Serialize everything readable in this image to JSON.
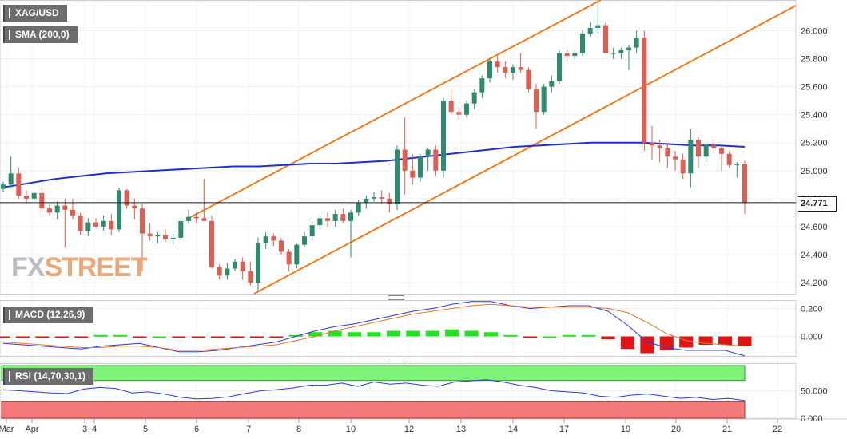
{
  "labels": {
    "symbol": "XAG/USD",
    "sma": "SMA (200,0)",
    "macd": "MACD (12,26,9)",
    "rsi": "RSI (14,70,30,1)",
    "last_price": "24.771",
    "watermark_fx": "FX",
    "watermark_street": "STREET"
  },
  "chart_data": [
    {
      "type": "candlestick",
      "title": "XAG/USD",
      "x_tick_labels": [
        "Mar",
        "Apr",
        "3",
        "4",
        "5",
        "6",
        "7",
        "8",
        "10",
        "12",
        "13",
        "14",
        "17",
        "19",
        "20",
        "21",
        "22"
      ],
      "y_tick_labels": [
        "26.000",
        "25.800",
        "25.600",
        "25.400",
        "25.200",
        "25.000",
        "24.800",
        "24.600",
        "24.400",
        "24.200"
      ],
      "ylim": [
        24.12,
        26.22
      ],
      "last_price": 24.771,
      "candles": [
        [
          24.87,
          24.92,
          24.85,
          24.9
        ],
        [
          24.9,
          25.1,
          24.88,
          24.98
        ],
        [
          24.98,
          25.02,
          24.8,
          24.82
        ],
        [
          24.82,
          24.86,
          24.76,
          24.8
        ],
        [
          24.8,
          24.85,
          24.77,
          24.84
        ],
        [
          24.84,
          24.88,
          24.7,
          24.73
        ],
        [
          24.73,
          24.76,
          24.68,
          24.7
        ],
        [
          24.7,
          24.78,
          24.65,
          24.75
        ],
        [
          24.75,
          24.8,
          24.45,
          24.72
        ],
        [
          24.72,
          24.8,
          24.65,
          24.68
        ],
        [
          24.68,
          24.7,
          24.54,
          24.57
        ],
        [
          24.57,
          24.66,
          24.53,
          24.63
        ],
        [
          24.63,
          24.66,
          24.59,
          24.6
        ],
        [
          24.6,
          24.68,
          24.57,
          24.64
        ],
        [
          24.64,
          24.69,
          24.54,
          24.58
        ],
        [
          24.58,
          24.88,
          24.56,
          24.86
        ],
        [
          24.86,
          24.87,
          24.73,
          24.75
        ],
        [
          24.75,
          24.8,
          24.65,
          24.73
        ],
        [
          24.73,
          24.76,
          24.28,
          24.55
        ],
        [
          24.55,
          24.62,
          24.5,
          24.53
        ],
        [
          24.53,
          24.56,
          24.48,
          24.54
        ],
        [
          24.54,
          24.58,
          24.49,
          24.51
        ],
        [
          24.51,
          24.55,
          24.47,
          24.52
        ],
        [
          24.52,
          24.66,
          24.5,
          24.64
        ],
        [
          24.64,
          24.72,
          24.62,
          24.67
        ],
        [
          24.67,
          24.7,
          24.62,
          24.66
        ],
        [
          24.66,
          24.94,
          24.64,
          24.64
        ],
        [
          24.64,
          24.68,
          24.3,
          24.31
        ],
        [
          24.31,
          24.33,
          24.22,
          24.25
        ],
        [
          24.25,
          24.34,
          24.22,
          24.3
        ],
        [
          24.3,
          24.37,
          24.28,
          24.35
        ],
        [
          24.35,
          24.38,
          24.22,
          24.28
        ],
        [
          24.28,
          24.35,
          24.18,
          24.2
        ],
        [
          24.2,
          24.52,
          24.13,
          24.48
        ],
        [
          24.48,
          24.56,
          24.44,
          24.53
        ],
        [
          24.53,
          24.55,
          24.46,
          24.5
        ],
        [
          24.5,
          24.52,
          24.4,
          24.42
        ],
        [
          24.42,
          24.44,
          24.28,
          24.33
        ],
        [
          24.33,
          24.48,
          24.3,
          24.47
        ],
        [
          24.47,
          24.56,
          24.45,
          24.53
        ],
        [
          24.53,
          24.64,
          24.5,
          24.61
        ],
        [
          24.61,
          24.68,
          24.58,
          24.66
        ],
        [
          24.66,
          24.7,
          24.6,
          24.64
        ],
        [
          24.64,
          24.72,
          24.6,
          24.69
        ],
        [
          24.69,
          24.73,
          24.62,
          24.64
        ],
        [
          24.64,
          24.72,
          24.38,
          24.7
        ],
        [
          24.7,
          24.79,
          24.68,
          24.77
        ],
        [
          24.77,
          24.82,
          24.73,
          24.8
        ],
        [
          24.8,
          24.85,
          24.78,
          24.81
        ],
        [
          24.81,
          24.86,
          24.76,
          24.8
        ],
        [
          24.8,
          24.84,
          24.7,
          24.76
        ],
        [
          24.76,
          25.18,
          24.72,
          25.15
        ],
        [
          25.15,
          25.38,
          24.83,
          25.0
        ],
        [
          25.0,
          25.12,
          24.9,
          24.95
        ],
        [
          24.95,
          25.12,
          24.92,
          25.1
        ],
        [
          25.1,
          25.16,
          25.0,
          25.15
        ],
        [
          25.15,
          25.18,
          24.96,
          25.0
        ],
        [
          25.0,
          25.52,
          24.95,
          25.5
        ],
        [
          25.5,
          25.58,
          25.4,
          25.42
        ],
        [
          25.42,
          25.46,
          25.36,
          25.4
        ],
        [
          25.4,
          25.5,
          25.38,
          25.48
        ],
        [
          25.48,
          25.58,
          25.44,
          25.56
        ],
        [
          25.56,
          25.68,
          25.52,
          25.66
        ],
        [
          25.66,
          25.8,
          25.63,
          25.78
        ],
        [
          25.78,
          25.82,
          25.7,
          25.74
        ],
        [
          25.74,
          25.78,
          25.66,
          25.7
        ],
        [
          25.7,
          25.76,
          25.65,
          25.74
        ],
        [
          25.74,
          25.84,
          25.7,
          25.72
        ],
        [
          25.72,
          25.74,
          25.56,
          25.58
        ],
        [
          25.58,
          25.62,
          25.3,
          25.42
        ],
        [
          25.42,
          25.62,
          25.4,
          25.6
        ],
        [
          25.6,
          25.68,
          25.56,
          25.64
        ],
        [
          25.64,
          25.86,
          25.62,
          25.84
        ],
        [
          25.84,
          25.86,
          25.78,
          25.82
        ],
        [
          25.82,
          25.86,
          25.8,
          25.84
        ],
        [
          25.84,
          26.0,
          25.82,
          25.98
        ],
        [
          25.98,
          26.06,
          25.96,
          26.02
        ],
        [
          26.02,
          26.2,
          25.98,
          26.04
        ],
        [
          26.04,
          26.06,
          25.84,
          25.84
        ],
        [
          25.84,
          25.88,
          25.8,
          25.84
        ],
        [
          25.84,
          25.88,
          25.8,
          25.86
        ],
        [
          25.86,
          25.9,
          25.72,
          25.88
        ],
        [
          25.88,
          26.0,
          25.84,
          25.95
        ],
        [
          25.95,
          26.0,
          25.14,
          25.2
        ],
        [
          25.2,
          25.32,
          25.08,
          25.18
        ],
        [
          25.18,
          25.22,
          25.06,
          25.16
        ],
        [
          25.16,
          25.2,
          25.02,
          25.1
        ],
        [
          25.1,
          25.14,
          25.0,
          25.08
        ],
        [
          25.08,
          25.12,
          24.94,
          24.98
        ],
        [
          24.98,
          25.3,
          24.88,
          25.22
        ],
        [
          25.22,
          25.24,
          25.02,
          25.1
        ],
        [
          25.1,
          25.2,
          25.06,
          25.18
        ],
        [
          25.18,
          25.22,
          25.14,
          25.16
        ],
        [
          25.16,
          25.18,
          25.0,
          25.12
        ],
        [
          25.12,
          25.14,
          25.02,
          25.04
        ],
        [
          25.04,
          25.06,
          24.95,
          25.05
        ],
        [
          25.05,
          25.07,
          24.69,
          24.77
        ]
      ],
      "series": [
        {
          "name": "SMA (200,0)",
          "values": [
            24.88,
            24.91,
            24.94,
            24.96,
            24.98,
            24.99,
            25.0,
            25.01,
            25.02,
            25.03,
            25.03,
            25.04,
            25.05,
            25.05,
            25.06,
            25.07,
            25.09,
            25.11,
            25.13,
            25.15,
            25.17,
            25.18,
            25.19,
            25.2,
            25.2,
            25.2,
            25.19,
            25.18,
            25.18,
            25.17
          ]
        }
      ]
    },
    {
      "type": "line+bar",
      "title": "MACD (12,26,9)",
      "y_tick_labels": [
        "0.200",
        "0.000"
      ],
      "ylim": [
        -0.14,
        0.26
      ],
      "series": [
        {
          "name": "MACD",
          "values": [
            -0.05,
            -0.06,
            -0.07,
            -0.08,
            -0.09,
            -0.07,
            -0.06,
            -0.05,
            -0.08,
            -0.11,
            -0.11,
            -0.1,
            -0.08,
            -0.06,
            -0.04,
            0.0,
            0.04,
            0.07,
            0.09,
            0.12,
            0.15,
            0.18,
            0.2,
            0.23,
            0.25,
            0.25,
            0.22,
            0.2,
            0.21,
            0.22,
            0.22,
            0.18,
            0.08,
            -0.04,
            -0.08,
            -0.1,
            -0.1,
            -0.1,
            -0.14
          ]
        },
        {
          "name": "Signal",
          "values": [
            -0.04,
            -0.05,
            -0.06,
            -0.07,
            -0.08,
            -0.08,
            -0.07,
            -0.07,
            -0.08,
            -0.1,
            -0.1,
            -0.09,
            -0.08,
            -0.07,
            -0.06,
            -0.03,
            0.0,
            0.04,
            0.07,
            0.1,
            0.13,
            0.16,
            0.18,
            0.2,
            0.22,
            0.23,
            0.22,
            0.21,
            0.21,
            0.21,
            0.21,
            0.2,
            0.17,
            0.1,
            0.02,
            -0.03,
            -0.05,
            -0.06,
            -0.07
          ]
        },
        {
          "name": "Histogram",
          "values": [
            -0.01,
            -0.01,
            -0.01,
            -0.01,
            -0.01,
            0.01,
            0.01,
            -0.01,
            0.0,
            -0.01,
            -0.01,
            -0.01,
            -0.01,
            -0.01,
            -0.01,
            0.01,
            0.03,
            0.04,
            0.03,
            0.03,
            0.04,
            0.04,
            0.04,
            0.05,
            0.04,
            0.03,
            0.01,
            -0.01,
            0.0,
            0.01,
            0.01,
            -0.02,
            -0.09,
            -0.12,
            -0.1,
            -0.08,
            -0.06,
            -0.06,
            -0.07
          ]
        }
      ]
    },
    {
      "type": "line",
      "title": "RSI (14,70,30,1)",
      "y_tick_labels": [
        "50.000",
        "0.000"
      ],
      "ylim": [
        0,
        100
      ],
      "series": [
        {
          "name": "RSI",
          "values": [
            52,
            50,
            48,
            46,
            45,
            53,
            56,
            54,
            46,
            48,
            44,
            38,
            35,
            36,
            39,
            45,
            50,
            52,
            55,
            60,
            60,
            64,
            58,
            66,
            62,
            64,
            60,
            58,
            66,
            68,
            70,
            66,
            60,
            56,
            50,
            48,
            46,
            40,
            38,
            42,
            44,
            40,
            36,
            38,
            34,
            36,
            32
          ]
        }
      ]
    }
  ]
}
